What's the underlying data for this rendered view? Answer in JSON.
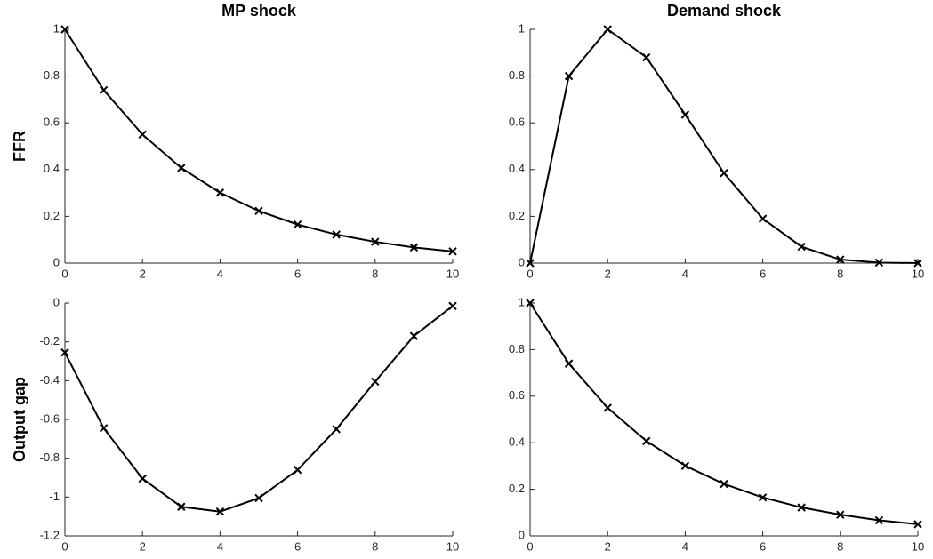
{
  "chart_data": [
    {
      "type": "line",
      "title": "MP shock",
      "ylabel": "FFR",
      "color": "#000000",
      "x": [
        0,
        1,
        2,
        3,
        4,
        5,
        6,
        7,
        8,
        9,
        10
      ],
      "values": [
        1,
        0.74,
        0.55,
        0.407,
        0.301,
        0.223,
        0.165,
        0.122,
        0.091,
        0.067,
        0.05
      ],
      "xlim": [
        0,
        10
      ],
      "ylim": [
        0,
        1
      ],
      "xticks": [
        0,
        2,
        4,
        6,
        8,
        10
      ],
      "yticks": [
        0,
        0.2,
        0.4,
        0.6,
        0.8,
        1
      ]
    },
    {
      "type": "line",
      "title": "Demand shock",
      "color": "#000000",
      "x": [
        0,
        1,
        2,
        3,
        4,
        5,
        6,
        7,
        8,
        9,
        10
      ],
      "values": [
        0,
        0.8,
        1,
        0.88,
        0.635,
        0.385,
        0.19,
        0.07,
        0.015,
        0.002,
        0
      ],
      "xlim": [
        0,
        10
      ],
      "ylim": [
        0,
        1
      ],
      "xticks": [
        0,
        2,
        4,
        6,
        8,
        10
      ],
      "yticks": [
        0,
        0.2,
        0.4,
        0.6,
        0.8,
        1
      ]
    },
    {
      "type": "line",
      "ylabel": "Output gap",
      "color": "#000000",
      "x": [
        0,
        1,
        2,
        3,
        4,
        5,
        6,
        7,
        8,
        9,
        10
      ],
      "values": [
        -0.255,
        -0.645,
        -0.905,
        -1.05,
        -1.075,
        -1.005,
        -0.86,
        -0.65,
        -0.405,
        -0.17,
        -0.015
      ],
      "xlim": [
        0,
        10
      ],
      "ylim": [
        -1.2,
        0
      ],
      "xticks": [
        0,
        2,
        4,
        6,
        8,
        10
      ],
      "yticks": [
        -1.2,
        -1,
        -0.8,
        -0.6,
        -0.4,
        -0.2,
        0
      ]
    },
    {
      "type": "line",
      "color": "#000000",
      "x": [
        0,
        1,
        2,
        3,
        4,
        5,
        6,
        7,
        8,
        9,
        10
      ],
      "values": [
        1,
        0.74,
        0.55,
        0.407,
        0.301,
        0.223,
        0.165,
        0.122,
        0.091,
        0.067,
        0.05
      ],
      "xlim": [
        0,
        10
      ],
      "ylim": [
        0,
        1
      ],
      "xticks": [
        0,
        2,
        4,
        6,
        8,
        10
      ],
      "yticks": [
        0,
        0.2,
        0.4,
        0.6,
        0.8,
        1
      ]
    }
  ]
}
